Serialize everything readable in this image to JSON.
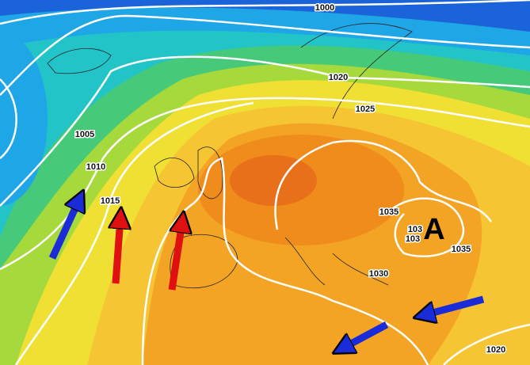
{
  "isobar_labels": [
    "1000",
    "1020",
    "1025",
    "1005",
    "1010",
    "1015",
    "1035",
    "1030",
    "1035",
    "1020"
  ],
  "partial_labels": [
    "103",
    "103"
  ],
  "high_pressure_label": "A"
}
